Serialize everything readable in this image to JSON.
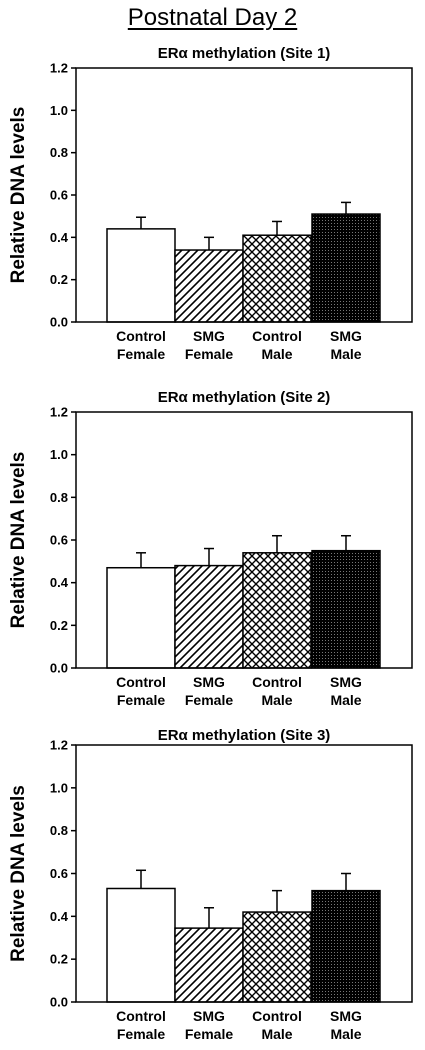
{
  "page_title": "Postnatal Day 2",
  "colors": {
    "bar_outline": "#000000",
    "fill_control_male": "#000000",
    "fill_smg_male": "#000000",
    "background": "#ffffff"
  },
  "patterns": [
    "none",
    "diagonal-hatch",
    "crosshatch",
    "dense-dot"
  ],
  "chart_data": [
    {
      "type": "bar",
      "title": "ERα methylation (Site 1)",
      "xlabel": "",
      "ylabel": "Relative DNA levels",
      "ylim": [
        0,
        1.2
      ],
      "yticks": [
        "0.0",
        "0.2",
        "0.4",
        "0.6",
        "0.8",
        "1.0",
        "1.2"
      ],
      "categories": [
        [
          "Control",
          "Female"
        ],
        [
          "SMG",
          "Female"
        ],
        [
          "Control",
          "Male"
        ],
        [
          "SMG",
          "Male"
        ]
      ],
      "values": [
        0.44,
        0.34,
        0.41,
        0.51
      ],
      "errors": [
        0.055,
        0.06,
        0.065,
        0.055
      ],
      "grid": false
    },
    {
      "type": "bar",
      "title": "ERα methylation (Site 2)",
      "xlabel": "",
      "ylabel": "Relative DNA levels",
      "ylim": [
        0,
        1.2
      ],
      "yticks": [
        "0.0",
        "0.2",
        "0.4",
        "0.6",
        "0.8",
        "1.0",
        "1.2"
      ],
      "categories": [
        [
          "Control",
          "Female"
        ],
        [
          "SMG",
          "Female"
        ],
        [
          "Control",
          "Male"
        ],
        [
          "SMG",
          "Male"
        ]
      ],
      "values": [
        0.47,
        0.48,
        0.54,
        0.55
      ],
      "errors": [
        0.07,
        0.08,
        0.08,
        0.07
      ],
      "grid": false
    },
    {
      "type": "bar",
      "title": "ERα methylation (Site 3)",
      "xlabel": "",
      "ylabel": "Relative DNA levels",
      "ylim": [
        0,
        1.2
      ],
      "yticks": [
        "0.0",
        "0.2",
        "0.4",
        "0.6",
        "0.8",
        "1.0",
        "1.2"
      ],
      "categories": [
        [
          "Control",
          "Female"
        ],
        [
          "SMG",
          "Female"
        ],
        [
          "Control",
          "Male"
        ],
        [
          "SMG",
          "Male"
        ]
      ],
      "values": [
        0.53,
        0.345,
        0.42,
        0.52
      ],
      "errors": [
        0.085,
        0.095,
        0.1,
        0.08
      ],
      "grid": false
    }
  ]
}
